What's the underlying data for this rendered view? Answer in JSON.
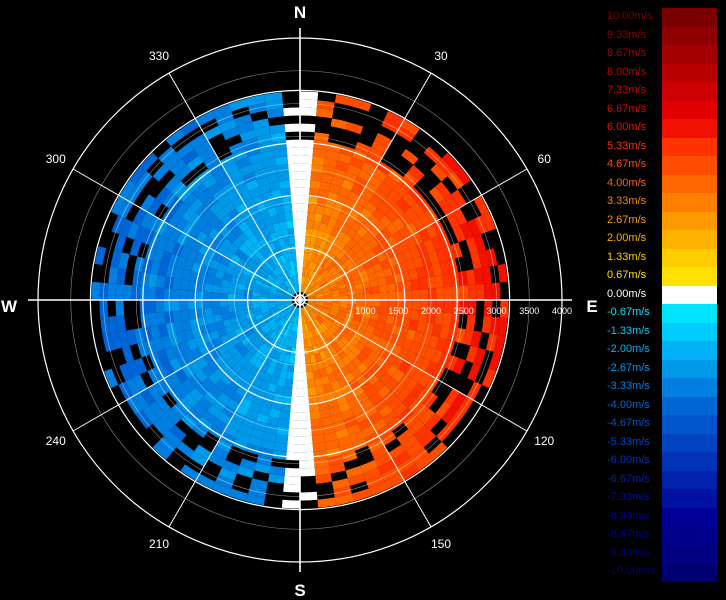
{
  "chart_data": {
    "type": "polar-heatmap",
    "compass": {
      "north": "N",
      "east": "E",
      "south": "S",
      "west": "W"
    },
    "angle_labels": [
      "30",
      "60",
      "120",
      "150",
      "210",
      "240",
      "300",
      "330"
    ],
    "angle_values": [
      30,
      60,
      120,
      150,
      210,
      240,
      300,
      330
    ],
    "range_labels": [
      "1000",
      "1500",
      "2000",
      "2500",
      "3000",
      "3500",
      "4000"
    ],
    "range_values": [
      1000,
      1500,
      2000,
      2500,
      3000,
      3500,
      4000
    ],
    "rlim": [
      0,
      4000
    ],
    "colorbar": {
      "min": -10,
      "max": 10,
      "unit": "m/s",
      "labels": [
        "10.00m/s",
        "9.33m/s",
        "8.67m/s",
        "8.00m/s",
        "7.33m/s",
        "6.67m/s",
        "6.00m/s",
        "5.33m/s",
        "4.67m/s",
        "4.00m/s",
        "3.33m/s",
        "2.67m/s",
        "2.00m/s",
        "1.33m/s",
        "0.67m/s",
        "0.00m/s",
        "-0.67m/s",
        "-1.33m/s",
        "-2.00m/s",
        "-2.67m/s",
        "-3.33m/s",
        "-4.00m/s",
        "-4.67m/s",
        "-5.33m/s",
        "-6.00m/s",
        "-6.67m/s",
        "-7.33m/s",
        "-8.00m/s",
        "-8.67m/s",
        "-9.33m/s",
        "-10.00m/s"
      ],
      "values": [
        10.0,
        9.33,
        8.67,
        8.0,
        7.33,
        6.67,
        6.0,
        5.33,
        4.67,
        4.0,
        3.33,
        2.67,
        2.0,
        1.33,
        0.67,
        0.0,
        -0.67,
        -1.33,
        -2.0,
        -2.67,
        -3.33,
        -4.0,
        -4.67,
        -5.33,
        -6.0,
        -6.67,
        -7.33,
        -8.0,
        -8.67,
        -9.33,
        -10.0
      ],
      "colors": [
        "#7a0000",
        "#8f0000",
        "#a40000",
        "#b80000",
        "#cc0000",
        "#e00000",
        "#f21000",
        "#ff3300",
        "#ff4d00",
        "#ff6600",
        "#ff8000",
        "#ff9900",
        "#ffb300",
        "#ffcc00",
        "#ffe000",
        "#ffffff",
        "#00e5ff",
        "#00ccff",
        "#00b2f5",
        "#0099ea",
        "#007fe0",
        "#0066d6",
        "#0055cc",
        "#0044c2",
        "#0033b8",
        "#0022ad",
        "#0011a3",
        "#000099",
        "#00008c",
        "#000080",
        "#000073"
      ]
    },
    "velocity_field": {
      "approaching_sector": "west",
      "receding_sector": "east",
      "approaching_peak": -4.0,
      "receding_peak": 6.0,
      "data_range_max": 3000
    },
    "grid": true
  }
}
